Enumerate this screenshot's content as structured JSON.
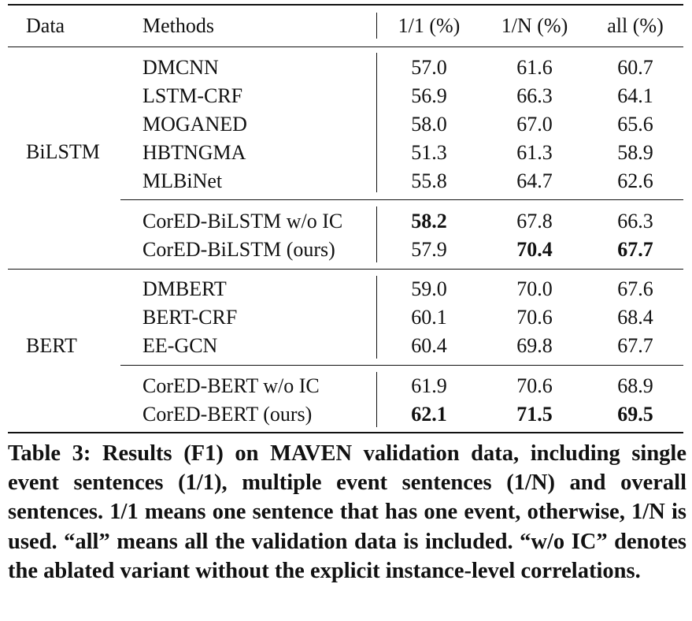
{
  "table": {
    "headers": {
      "data": "Data",
      "methods": "Methods",
      "col1": "1/1 (%)",
      "colN": "1/N (%)",
      "all": "all (%)"
    },
    "groups": [
      {
        "name": "BiLSTM",
        "blocks": [
          [
            {
              "method": "DMCNN",
              "v1": "57.0",
              "vN": "61.6",
              "vAll": "60.7",
              "bold": []
            },
            {
              "method": "LSTM-CRF",
              "v1": "56.9",
              "vN": "66.3",
              "vAll": "64.1",
              "bold": []
            },
            {
              "method": "MOGANED",
              "v1": "58.0",
              "vN": "67.0",
              "vAll": "65.6",
              "bold": []
            },
            {
              "method": "HBTNGMA",
              "v1": "51.3",
              "vN": "61.3",
              "vAll": "58.9",
              "bold": []
            },
            {
              "method": "MLBiNet",
              "v1": "55.8",
              "vN": "64.7",
              "vAll": "62.6",
              "bold": []
            }
          ],
          [
            {
              "method": "CorED-BiLSTM w/o IC",
              "v1": "58.2",
              "vN": "67.8",
              "vAll": "66.3",
              "bold": [
                "v1"
              ]
            },
            {
              "method": "CorED-BiLSTM (ours)",
              "v1": "57.9",
              "vN": "70.4",
              "vAll": "67.7",
              "bold": [
                "vN",
                "vAll"
              ]
            }
          ]
        ]
      },
      {
        "name": "BERT",
        "blocks": [
          [
            {
              "method": "DMBERT",
              "v1": "59.0",
              "vN": "70.0",
              "vAll": "67.6",
              "bold": []
            },
            {
              "method": "BERT-CRF",
              "v1": "60.1",
              "vN": "70.6",
              "vAll": "68.4",
              "bold": []
            },
            {
              "method": "EE-GCN",
              "v1": "60.4",
              "vN": "69.8",
              "vAll": "67.7",
              "bold": []
            }
          ],
          [
            {
              "method": "CorED-BERT w/o IC",
              "v1": "61.9",
              "vN": "70.6",
              "vAll": "68.9",
              "bold": []
            },
            {
              "method": "CorED-BERT (ours)",
              "v1": "62.1",
              "vN": "71.5",
              "vAll": "69.5",
              "bold": [
                "v1",
                "vN",
                "vAll"
              ]
            }
          ]
        ]
      }
    ]
  },
  "caption": "Table 3: Results (F1) on MAVEN validation data, including single event sentences (1/1), multiple event sentences (1/N) and overall sentences. 1/1 means one sentence that has one event, otherwise, 1/N is used. “all” means all the validation data is included. “w/o IC” denotes the ablated variant without the explicit instance-level correlations."
}
